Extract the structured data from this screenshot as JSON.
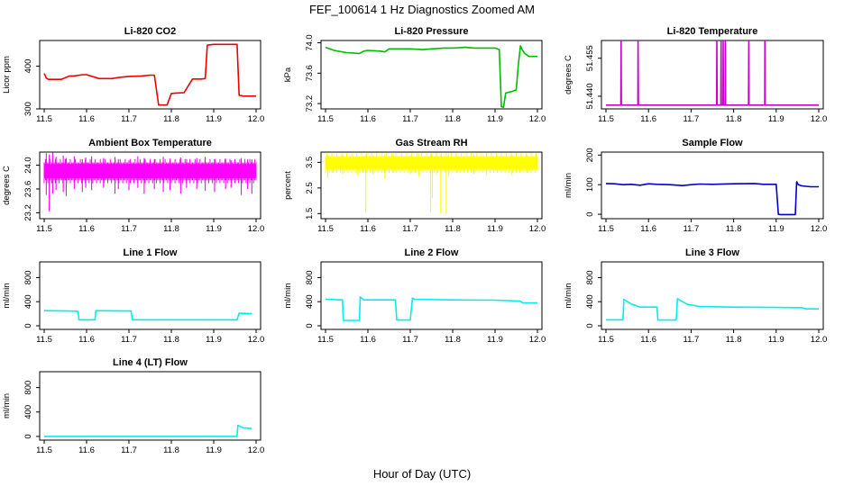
{
  "figure": {
    "title": "FEF_100614  1 Hz Diagnostics Zoomed AM",
    "xlabel": "Hour of Day (UTC)"
  },
  "chart_data": [
    {
      "type": "line",
      "title": "Li-820 CO2",
      "ylabel": "Licor ppm",
      "color": "#ee0000",
      "xlim": [
        11.5,
        12.0
      ],
      "ylim": [
        300,
        460
      ],
      "xticks": [
        "11.5",
        "11.6",
        "11.7",
        "11.8",
        "11.9",
        "12.0"
      ],
      "yticks": [
        "300",
        "400"
      ],
      "x": [
        11.5,
        11.505,
        11.51,
        11.52,
        11.54,
        11.56,
        11.57,
        11.59,
        11.6,
        11.63,
        11.65,
        11.66,
        11.68,
        11.7,
        11.73,
        11.75,
        11.76,
        11.77,
        11.78,
        11.79,
        11.8,
        11.81,
        11.83,
        11.85,
        11.86,
        11.87,
        11.88,
        11.885,
        11.9,
        11.93,
        11.95,
        11.955,
        11.96,
        11.97,
        11.98,
        12.0
      ],
      "y": [
        383,
        372,
        369,
        369,
        369,
        377,
        377,
        380,
        380,
        371,
        371,
        371,
        374,
        376,
        377,
        379,
        379,
        309,
        309,
        309,
        336,
        337,
        338,
        370,
        370,
        370,
        371,
        449,
        451,
        451,
        451,
        451,
        332,
        330,
        330,
        330
      ]
    },
    {
      "type": "line",
      "title": "Li-820 Pressure",
      "ylabel": "kPa",
      "color": "#00bb00",
      "xlim": [
        11.5,
        12.0
      ],
      "ylim": [
        73.13,
        74.03
      ],
      "xticks": [
        "11.5",
        "11.6",
        "11.7",
        "11.8",
        "11.9",
        "12.0"
      ],
      "yticks": [
        "73.2",
        "73.6",
        "74.0"
      ],
      "x": [
        11.5,
        11.51,
        11.52,
        11.55,
        11.58,
        11.59,
        11.6,
        11.63,
        11.64,
        11.65,
        11.68,
        11.7,
        11.73,
        11.75,
        11.78,
        11.8,
        11.83,
        11.85,
        11.88,
        11.9,
        11.91,
        11.915,
        11.92,
        11.925,
        11.94,
        11.95,
        11.955,
        11.96,
        11.965,
        11.97,
        11.98,
        12.0
      ],
      "y": [
        73.94,
        73.92,
        73.9,
        73.87,
        73.86,
        73.89,
        73.9,
        73.89,
        73.88,
        73.92,
        73.92,
        73.92,
        73.91,
        73.92,
        73.93,
        73.93,
        73.94,
        73.93,
        73.93,
        73.93,
        73.91,
        73.16,
        73.15,
        73.34,
        73.36,
        73.38,
        73.72,
        73.96,
        73.9,
        73.86,
        73.82,
        73.82
      ]
    },
    {
      "type": "line",
      "title": "Li-820 Temperature",
      "ylabel": "degrees C",
      "color": "#cc00cc",
      "xlim": [
        11.5,
        12.0
      ],
      "ylim": [
        51.435,
        51.462
      ],
      "xticks": [
        "11.5",
        "11.6",
        "11.7",
        "11.8",
        "11.9",
        "12.0"
      ],
      "yticks": [
        "51.440",
        "51.455"
      ],
      "x": [
        11.5,
        11.535,
        11.5355,
        11.5362,
        11.575,
        11.5755,
        11.5762,
        11.76,
        11.7605,
        11.7612,
        11.77,
        11.7705,
        11.7712,
        11.775,
        11.7755,
        11.7762,
        11.78,
        11.7805,
        11.7812,
        11.835,
        11.8355,
        11.8362,
        11.873,
        11.8735,
        11.8742,
        12.0
      ],
      "y": [
        51.4365,
        51.4365,
        51.462,
        51.4365,
        51.4365,
        51.462,
        51.4365,
        51.4365,
        51.462,
        51.4365,
        51.4365,
        51.462,
        51.4365,
        51.4365,
        51.462,
        51.4365,
        51.4365,
        51.462,
        51.4365,
        51.4365,
        51.462,
        51.4365,
        51.4365,
        51.462,
        51.4365,
        51.4365
      ]
    },
    {
      "type": "line",
      "title": "Ambient Box Temperature",
      "ylabel": "degrees C",
      "color": "#ff00ff",
      "xlim": [
        11.5,
        12.0
      ],
      "ylim": [
        23.1,
        24.22
      ],
      "xticks": [
        "11.5",
        "11.6",
        "11.7",
        "11.8",
        "11.9",
        "12.0"
      ],
      "yticks": [
        "23.2",
        "23.6",
        "24.0"
      ],
      "band_low": 23.78,
      "band_high": 24.02,
      "spikes_x": [
        11.505,
        11.512,
        11.52,
        11.528,
        11.545,
        11.552,
        11.571,
        11.59,
        11.598,
        11.612,
        11.64,
        11.667,
        11.675,
        11.7,
        11.721,
        11.736,
        11.76,
        11.781,
        11.797,
        11.822,
        11.836,
        11.86,
        11.88,
        11.902,
        11.928,
        11.941,
        11.965,
        11.98,
        11.99
      ],
      "spikes_low": [
        23.5,
        23.22,
        23.52,
        23.58,
        23.55,
        23.48,
        23.6,
        23.55,
        23.62,
        23.58,
        23.62,
        23.52,
        23.6,
        23.58,
        23.62,
        23.52,
        23.6,
        23.55,
        23.58,
        23.52,
        23.62,
        23.6,
        23.57,
        23.55,
        23.6,
        23.62,
        23.5,
        23.6,
        23.52
      ],
      "spikes_high": [
        24.2,
        24.18,
        24.21,
        24.14,
        24.16,
        24.12,
        24.15,
        24.1,
        24.13,
        24.15,
        24.12,
        24.14,
        24.1,
        24.08,
        24.15,
        24.12,
        24.1,
        24.14,
        24.11,
        24.13,
        24.1,
        24.12,
        24.14,
        24.1,
        24.11,
        24.08,
        24.12,
        24.1,
        24.1
      ]
    },
    {
      "type": "line",
      "title": "Gas Stream RH",
      "ylabel": "percent",
      "color": "#ffff00",
      "xlim": [
        11.5,
        12.0
      ],
      "ylim": [
        1.3,
        3.9
      ],
      "xticks": [
        "11.5",
        "11.6",
        "11.7",
        "11.8",
        "11.9",
        "12.0"
      ],
      "yticks": [
        "1.5",
        "2.5",
        "3.5"
      ],
      "band_low": 3.25,
      "band_high": 3.7,
      "spikes_x": [
        11.505,
        11.515,
        11.54,
        11.575,
        11.595,
        11.612,
        11.64,
        11.66,
        11.7,
        11.72,
        11.748,
        11.752,
        11.762,
        11.772,
        11.785,
        11.79,
        11.81,
        11.85,
        11.88,
        11.905,
        11.94,
        11.975
      ],
      "spikes_low": [
        2.9,
        3.1,
        3.05,
        3.0,
        1.55,
        3.05,
        2.85,
        3.1,
        3.05,
        2.95,
        1.55,
        2.1,
        3.05,
        1.5,
        1.5,
        3.0,
        3.1,
        3.05,
        3.0,
        3.1,
        3.0,
        3.1
      ],
      "spikes_high": [
        3.8,
        3.85,
        3.8,
        3.75,
        3.8,
        3.78,
        3.82,
        3.8,
        3.78,
        3.82,
        3.8,
        3.78,
        3.85,
        3.8,
        3.78,
        3.82,
        3.75,
        3.8,
        3.85,
        3.78,
        3.8,
        3.8
      ]
    },
    {
      "type": "line",
      "title": "Sample Flow",
      "ylabel": "ml/min",
      "color": "#0000cc",
      "xlim": [
        11.5,
        12.0
      ],
      "ylim": [
        -15,
        210
      ],
      "xticks": [
        "11.5",
        "11.6",
        "11.7",
        "11.8",
        "11.9",
        "12.0"
      ],
      "yticks": [
        "0",
        "100",
        "200"
      ],
      "x": [
        11.5,
        11.52,
        11.54,
        11.56,
        11.58,
        11.6,
        11.62,
        11.65,
        11.68,
        11.7,
        11.72,
        11.75,
        11.8,
        11.85,
        11.87,
        11.9,
        11.905,
        11.91,
        11.945,
        11.948,
        11.952,
        11.96,
        11.98,
        12.0
      ],
      "y": [
        104,
        103,
        100,
        101,
        98,
        103,
        101,
        100,
        97,
        100,
        102,
        101,
        103,
        104,
        101,
        101,
        0,
        -1,
        -1,
        110,
        100,
        96,
        93,
        93
      ]
    },
    {
      "type": "line",
      "title": "Line 1 Flow",
      "ylabel": "ml/min",
      "color": "#00eeee",
      "xlim": [
        11.5,
        12.0
      ],
      "ylim": [
        -60,
        1060
      ],
      "xticks": [
        "11.5",
        "11.6",
        "11.7",
        "11.8",
        "11.9",
        "12.0"
      ],
      "yticks": [
        "0",
        "400",
        "800"
      ],
      "x": [
        11.5,
        11.56,
        11.58,
        11.582,
        11.62,
        11.622,
        11.705,
        11.708,
        11.8,
        11.955,
        11.96,
        11.99
      ],
      "y": [
        250,
        245,
        240,
        100,
        100,
        250,
        245,
        100,
        100,
        100,
        210,
        200
      ]
    },
    {
      "type": "line",
      "title": "Line 2 Flow",
      "ylabel": "ml/min",
      "color": "#00eeee",
      "xlim": [
        11.5,
        12.0
      ],
      "ylim": [
        -60,
        1060
      ],
      "xticks": [
        "11.5",
        "11.6",
        "11.7",
        "11.8",
        "11.9",
        "12.0"
      ],
      "yticks": [
        "0",
        "400",
        "800"
      ],
      "x": [
        11.5,
        11.54,
        11.542,
        11.58,
        11.582,
        11.59,
        11.665,
        11.668,
        11.7,
        11.705,
        11.71,
        11.8,
        11.9,
        11.96,
        11.965,
        12.0
      ],
      "y": [
        440,
        430,
        90,
        90,
        480,
        430,
        430,
        95,
        95,
        460,
        440,
        430,
        425,
        410,
        380,
        380
      ]
    },
    {
      "type": "line",
      "title": "Line 3 Flow",
      "ylabel": "ml/min",
      "color": "#00eeee",
      "xlim": [
        11.5,
        12.0
      ],
      "ylim": [
        -60,
        1060
      ],
      "xticks": [
        "11.5",
        "11.6",
        "11.7",
        "11.8",
        "11.9",
        "12.0"
      ],
      "yticks": [
        "0",
        "400",
        "800"
      ],
      "x": [
        11.5,
        11.54,
        11.542,
        11.56,
        11.58,
        11.62,
        11.622,
        11.665,
        11.668,
        11.69,
        11.72,
        11.8,
        11.9,
        11.96,
        11.97,
        12.0
      ],
      "y": [
        100,
        100,
        440,
        360,
        310,
        310,
        95,
        95,
        450,
        360,
        320,
        310,
        305,
        300,
        280,
        280
      ]
    },
    {
      "type": "line",
      "title": "Line 4 (LT) Flow",
      "ylabel": "ml/min",
      "color": "#00eeee",
      "xlim": [
        11.5,
        12.0
      ],
      "ylim": [
        -60,
        1060
      ],
      "xticks": [
        "11.5",
        "11.6",
        "11.7",
        "11.8",
        "11.9",
        "12.0"
      ],
      "yticks": [
        "0",
        "400",
        "800"
      ],
      "x": [
        11.5,
        11.6,
        11.7,
        11.8,
        11.9,
        11.955,
        11.957,
        11.97,
        11.99
      ],
      "y": [
        0,
        0,
        0,
        0,
        0,
        0,
        180,
        140,
        130
      ]
    }
  ]
}
